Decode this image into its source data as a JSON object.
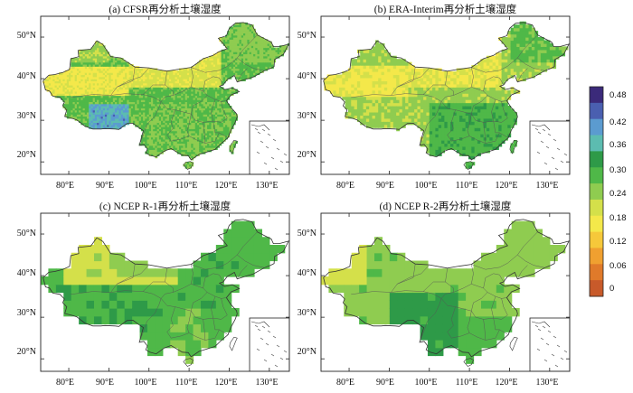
{
  "panels": [
    {
      "title": "(a) CFSR再分析土壤湿度"
    },
    {
      "title": "(b) ERA-Interim再分析土壤湿度"
    },
    {
      "title": "(c) NCEP R-1再分析土壤湿度"
    },
    {
      "title": "(d) NCEP R-2再分析土壤湿度"
    }
  ],
  "axes": {
    "lat_ticks": [
      "50°N",
      "40°N",
      "30°N",
      "20°N"
    ],
    "lon_ticks": [
      "80°E",
      "90°E",
      "100°E",
      "110°E",
      "120°E",
      "130°E"
    ]
  },
  "colorbar": {
    "labels": [
      "0.48",
      "0.42",
      "0.36",
      "0.30",
      "0.24",
      "0.18",
      "0.12",
      "0.06",
      "0"
    ],
    "colors": [
      "#3b2a7a",
      "#4a5fb0",
      "#5b9bd0",
      "#5cbcb0",
      "#2e9a48",
      "#4fb848",
      "#8fcc50",
      "#d4e04a",
      "#f4e84a",
      "#f6c83a",
      "#f0a030",
      "#e07a2a",
      "#c85a2a"
    ]
  }
}
